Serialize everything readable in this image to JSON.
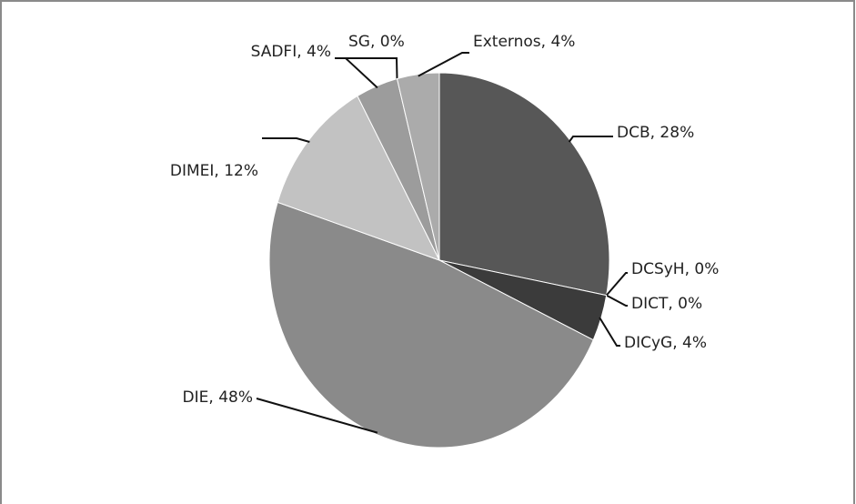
{
  "chart_data": {
    "type": "pie",
    "values": [
      28,
      0,
      0,
      4,
      48,
      12,
      4,
      0,
      4
    ],
    "value_labels": [
      "DCB, 28%",
      "DCSyH, 0%",
      "DICT, 0%",
      "DICyG, 4%",
      "DIE, 48%",
      "DIMEI, 12%",
      "SADFI, 4%",
      "SG, 0%",
      "Externos, 4%"
    ],
    "colors": [
      "#575757",
      "#4a4a4a",
      "#404040",
      "#3b3b3b",
      "#8a8a8a",
      "#c2c2c2",
      "#9c9c9c",
      "#b0b0b0",
      "#ababab"
    ]
  }
}
